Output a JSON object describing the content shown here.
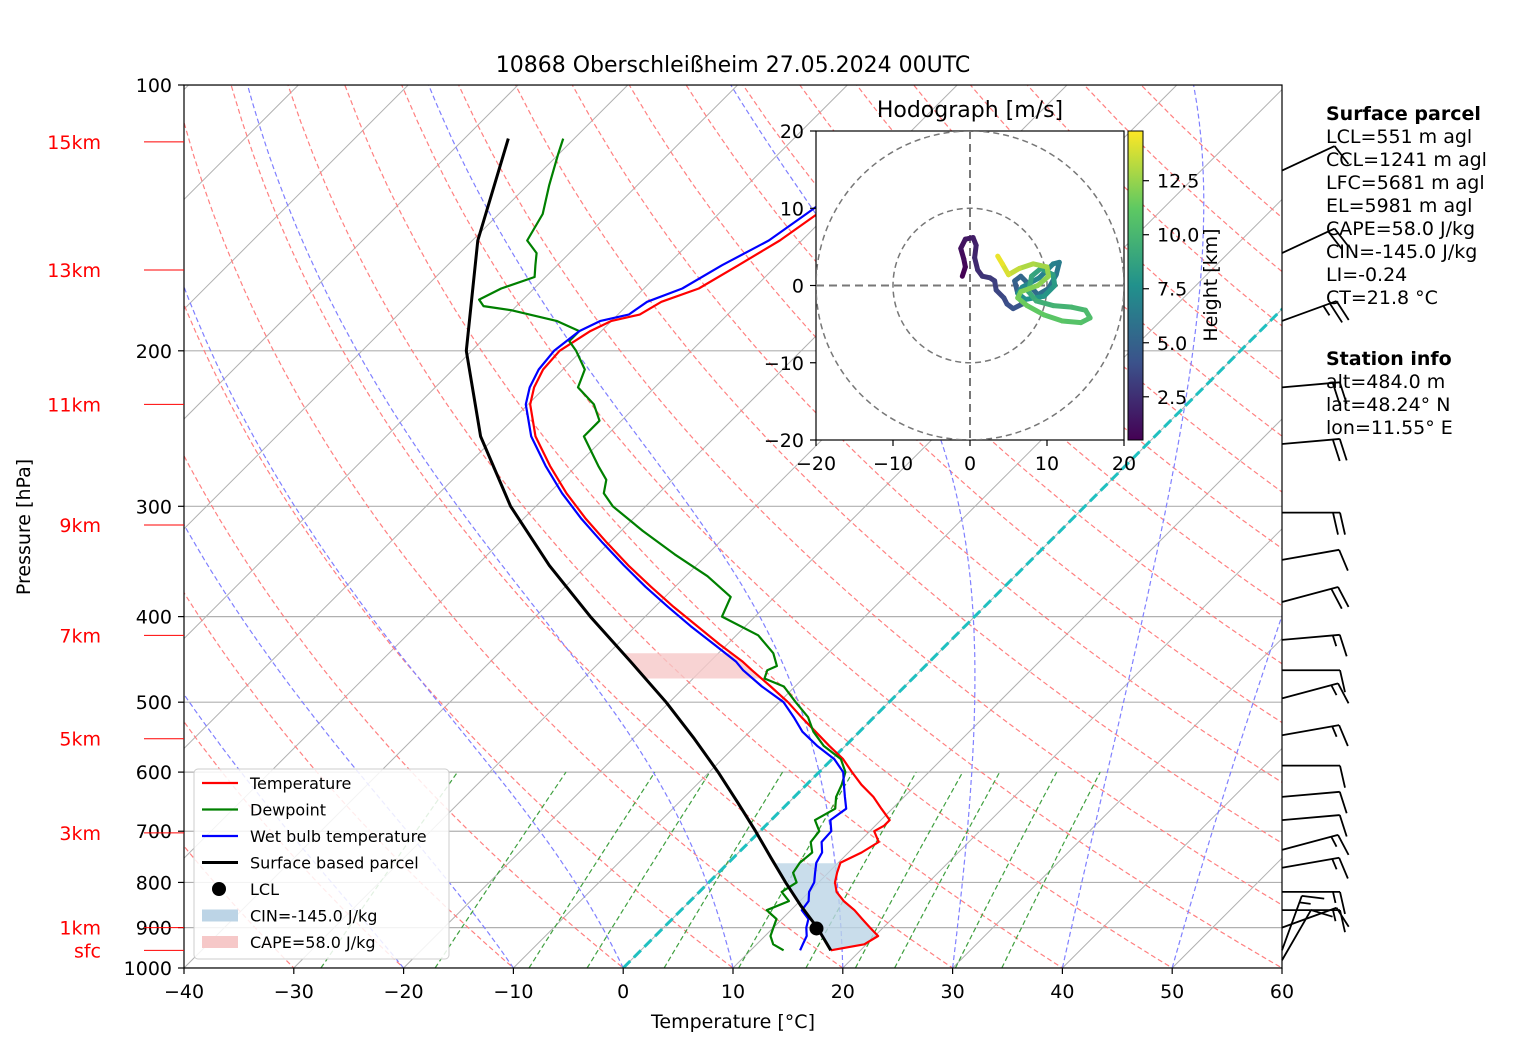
{
  "title": "10868 Oberschleißheim 27.05.2024 00UTC",
  "surface_parcel": {
    "heading": "Surface parcel",
    "lines": [
      "LCL=551 m agl",
      "CCL=1241 m agl",
      "LFC=5681 m agl",
      "EL=5981 m agl",
      "CAPE=58.0 J/kg",
      "CIN=-145.0 J/kg",
      "LI=-0.24",
      "CT=21.8 °C"
    ]
  },
  "station_info": {
    "heading": "Station info",
    "lines": [
      "alt=484.0 m",
      "lat=48.24° N",
      "lon=11.55° E"
    ]
  },
  "chart_data": [
    {
      "type": "line",
      "subtype": "skew-t log-p",
      "xlabel": "Temperature [°C]",
      "ylabel": "Pressure [hPa]",
      "xlim": [
        -40,
        60
      ],
      "ylim": [
        1000,
        100
      ],
      "y_scale": "log",
      "x_ticks": [
        -40,
        -30,
        -20,
        -10,
        0,
        10,
        20,
        30,
        40,
        50,
        60
      ],
      "x_tick_labels": [
        "−40",
        "−30",
        "−20",
        "−10",
        "0",
        "10",
        "20",
        "30",
        "40",
        "50",
        "60"
      ],
      "y_ticks": [
        1000,
        900,
        800,
        700,
        600,
        500,
        400,
        300,
        200,
        100
      ],
      "grid": true,
      "height_labels": [
        {
          "label": "sfc",
          "p": 955
        },
        {
          "label": "1km",
          "p": 900
        },
        {
          "label": "3km",
          "p": 703
        },
        {
          "label": "5km",
          "p": 550
        },
        {
          "label": "7km",
          "p": 420
        },
        {
          "label": "9km",
          "p": 315
        },
        {
          "label": "11km",
          "p": 230
        },
        {
          "label": "13km",
          "p": 162
        },
        {
          "label": "15km",
          "p": 116
        }
      ],
      "legend_position": "lower-left",
      "legend": [
        "Temperature",
        "Dewpoint",
        "Wet bulb temperature",
        "Surface based parcel",
        "LCL",
        "CIN=-145.0 J/kg",
        "CAPE=58.0 J/kg"
      ],
      "colors": {
        "temperature": "#ff0000",
        "dewpoint": "#008000",
        "wetbulb": "#0000ff",
        "parcel": "#000000",
        "dry_adiabat": "#ff8080",
        "moist_adiabat": "#8080ff",
        "mixing_ratio": "#40a040",
        "isotherm": "#b0b0b0",
        "zero_isotherm": "#20c0c0",
        "cin_fill": "#bcd4e6",
        "cape_fill": "#f6c8c8"
      },
      "series": [
        {
          "name": "Temperature",
          "p": [
            955,
            940,
            920,
            900,
            880,
            860,
            840,
            820,
            800,
            780,
            760,
            740,
            720,
            700,
            690,
            680,
            660,
            640,
            620,
            600,
            580,
            560,
            540,
            520,
            500,
            480,
            460,
            450,
            430,
            410,
            390,
            370,
            350,
            330,
            310,
            290,
            270,
            250,
            230,
            220,
            210,
            200,
            190,
            185,
            182,
            176,
            170,
            160,
            150,
            140,
            130,
            120,
            115
          ],
          "t": [
            17.3,
            19.8,
            20.3,
            18.8,
            17.3,
            15.8,
            14.0,
            12.5,
            11.5,
            10.8,
            10.2,
            11.2,
            11.8,
            10.4,
            10.8,
            10.8,
            9.0,
            7.2,
            5.0,
            3.0,
            1.0,
            -1.5,
            -4.0,
            -6.6,
            -9.2,
            -12.2,
            -15.4,
            -17.0,
            -20.7,
            -24.4,
            -28.3,
            -32.2,
            -36.2,
            -40.2,
            -44.3,
            -48.4,
            -52.4,
            -56.4,
            -59.8,
            -61.0,
            -61.8,
            -62.0,
            -61.0,
            -60.0,
            -58.0,
            -57.2,
            -55.0,
            -53.5,
            -52.0,
            -51.0,
            -50.0,
            -49.5,
            -49.3
          ]
        },
        {
          "name": "Dewpoint",
          "p": [
            955,
            940,
            920,
            900,
            880,
            860,
            840,
            820,
            800,
            780,
            760,
            740,
            720,
            700,
            680,
            660,
            640,
            620,
            600,
            580,
            560,
            540,
            520,
            500,
            480,
            470,
            460,
            455,
            440,
            420,
            400,
            380,
            360,
            340,
            320,
            300,
            290,
            280,
            270,
            250,
            240,
            230,
            220,
            210,
            200,
            195,
            190,
            185,
            180,
            178,
            175,
            170,
            165,
            160,
            155,
            150,
            140,
            130,
            120,
            115
          ],
          "t": [
            13.0,
            11.5,
            10.5,
            10.0,
            9.5,
            7.8,
            9.0,
            7.5,
            8.0,
            6.8,
            6.5,
            6.7,
            5.6,
            5.4,
            4.0,
            4.8,
            3.8,
            3.2,
            2.4,
            0.8,
            -2.0,
            -4.2,
            -6.0,
            -8.5,
            -11.0,
            -13.5,
            -14.0,
            -13.5,
            -15.0,
            -18.0,
            -23.0,
            -24.0,
            -28.0,
            -33.0,
            -38.0,
            -43.0,
            -45.0,
            -46.0,
            -48.0,
            -52.0,
            -52.0,
            -54.0,
            -57.0,
            -58.0,
            -60.5,
            -62.0,
            -62.0,
            -65.0,
            -70.0,
            -73.0,
            -74.0,
            -73.0,
            -71.0,
            -72.0,
            -73.0,
            -75.0,
            -76.0,
            -78.0,
            -80.0,
            -81.0
          ]
        },
        {
          "name": "Wet bulb temperature",
          "p": [
            955,
            940,
            920,
            900,
            880,
            860,
            840,
            820,
            800,
            780,
            760,
            740,
            720,
            700,
            680,
            660,
            640,
            620,
            600,
            580,
            560,
            540,
            520,
            500,
            480,
            460,
            450,
            430,
            410,
            390,
            370,
            350,
            330,
            310,
            290,
            270,
            250,
            230,
            220,
            210,
            200,
            190,
            185,
            182,
            176,
            170,
            160,
            150,
            140,
            130,
            120,
            115
          ],
          "t": [
            14.5,
            14.2,
            13.8,
            13.0,
            12.4,
            11.0,
            10.8,
            10.0,
            9.6,
            8.8,
            8.0,
            7.6,
            6.6,
            6.5,
            5.4,
            5.8,
            4.6,
            3.4,
            2.2,
            0.2,
            -2.6,
            -5.2,
            -7.3,
            -9.6,
            -13.0,
            -16.2,
            -17.6,
            -21.2,
            -25.0,
            -28.8,
            -32.7,
            -36.6,
            -40.6,
            -44.7,
            -48.8,
            -52.8,
            -56.8,
            -60.2,
            -61.4,
            -62.2,
            -62.5,
            -62.0,
            -61.0,
            -59.0,
            -58.5,
            -56.5,
            -55.0,
            -53.0,
            -52.0,
            -51.0,
            -50.6,
            -50.4
          ]
        },
        {
          "name": "Surface based parcel",
          "p": [
            955,
            900,
            850,
            800,
            750,
            700,
            650,
            600,
            550,
            500,
            450,
            400,
            350,
            300,
            250,
            200,
            150,
            115
          ],
          "t": [
            17.3,
            14.0,
            10.5,
            7.0,
            3.4,
            -0.4,
            -4.6,
            -9.2,
            -14.4,
            -20.3,
            -27.2,
            -35.0,
            -43.4,
            -52.3,
            -61.4,
            -70.5,
            -79.5,
            -86.0
          ]
        }
      ],
      "lcl": {
        "p": 902,
        "t": 14.0
      },
      "cin": "-145.0 J/kg",
      "cape": "58.0 J/kg",
      "wind_barbs": [
        {
          "p": 980,
          "dir": 210,
          "speed_kt": 10
        },
        {
          "p": 955,
          "dir": 200,
          "speed_kt": 15
        },
        {
          "p": 900,
          "dir": 250,
          "speed_kt": 10
        },
        {
          "p": 860,
          "dir": 270,
          "speed_kt": 15
        },
        {
          "p": 820,
          "dir": 270,
          "speed_kt": 15
        },
        {
          "p": 770,
          "dir": 260,
          "speed_kt": 15
        },
        {
          "p": 735,
          "dir": 255,
          "speed_kt": 15
        },
        {
          "p": 680,
          "dir": 265,
          "speed_kt": 10
        },
        {
          "p": 640,
          "dir": 265,
          "speed_kt": 10
        },
        {
          "p": 590,
          "dir": 270,
          "speed_kt": 10
        },
        {
          "p": 545,
          "dir": 260,
          "speed_kt": 15
        },
        {
          "p": 495,
          "dir": 255,
          "speed_kt": 15
        },
        {
          "p": 460,
          "dir": 270,
          "speed_kt": 10
        },
        {
          "p": 425,
          "dir": 265,
          "speed_kt": 15
        },
        {
          "p": 385,
          "dir": 255,
          "speed_kt": 20
        },
        {
          "p": 345,
          "dir": 260,
          "speed_kt": 10
        },
        {
          "p": 305,
          "dir": 270,
          "speed_kt": 20
        },
        {
          "p": 255,
          "dir": 265,
          "speed_kt": 20
        },
        {
          "p": 220,
          "dir": 265,
          "speed_kt": 20
        },
        {
          "p": 185,
          "dir": 250,
          "speed_kt": 25
        },
        {
          "p": 155,
          "dir": 245,
          "speed_kt": 20
        },
        {
          "p": 125,
          "dir": 245,
          "speed_kt": 10
        }
      ]
    },
    {
      "type": "line",
      "subtype": "hodograph",
      "title": "Hodograph [m/s]",
      "xlim": [
        -20,
        20
      ],
      "ylim": [
        -20,
        20
      ],
      "ticks": [
        -20,
        -10,
        0,
        10,
        20
      ],
      "tick_labels": [
        "−20",
        "−10",
        "0",
        "10",
        "20"
      ],
      "rings": [
        10,
        20
      ],
      "colorbar_label": "Height [km]",
      "colorbar_ticks": [
        "2.5",
        "5.0",
        "7.5",
        "10.0",
        "12.5"
      ],
      "colorbar_tick_values": [
        2.5,
        5.0,
        7.5,
        10.0,
        12.5
      ],
      "colorbar_range": [
        0.5,
        14.8
      ],
      "series": [
        {
          "name": "wind",
          "u": [
            -1.0,
            -0.6,
            -0.8,
            -1.2,
            -0.6,
            0.4,
            0.8,
            0.6,
            1.0,
            1.6,
            2.6,
            3.2,
            3.4,
            4.4,
            4.8,
            5.6,
            6.8,
            6.2,
            5.8,
            6.6,
            7.6,
            8.8,
            10.2,
            11.2,
            11.6,
            10.8,
            9.0,
            6.8,
            6.2,
            7.2,
            9.6,
            11.0,
            10.8,
            9.2,
            8.0,
            7.6,
            8.6,
            10.8,
            13.2,
            15.0,
            15.6,
            14.4,
            12.0,
            9.6,
            7.4,
            6.2,
            6.6,
            8.8,
            10.2,
            10.0,
            8.2,
            6.4,
            5.0,
            4.2,
            3.6
          ],
          "v": [
            1.2,
            2.4,
            3.4,
            4.8,
            6.0,
            6.2,
            5.2,
            3.6,
            2.0,
            1.2,
            1.0,
            0.6,
            -0.6,
            -1.6,
            -2.4,
            -3.0,
            -2.4,
            -1.0,
            0.6,
            1.2,
            0.2,
            -1.2,
            -0.4,
            1.4,
            3.0,
            2.8,
            1.0,
            -0.2,
            -1.0,
            -1.8,
            -1.4,
            0.0,
            1.4,
            2.2,
            1.2,
            -0.8,
            -2.0,
            -2.6,
            -2.8,
            -3.2,
            -4.2,
            -4.8,
            -4.6,
            -3.8,
            -2.6,
            -1.6,
            -0.8,
            0.0,
            1.2,
            2.4,
            2.8,
            2.2,
            1.4,
            2.8,
            3.8
          ],
          "z_km": [
            0.5,
            0.75,
            1.0,
            1.25,
            1.5,
            1.75,
            2.0,
            2.25,
            2.5,
            2.75,
            3.0,
            3.25,
            3.5,
            3.75,
            4.0,
            4.25,
            4.5,
            4.75,
            5.0,
            5.25,
            5.5,
            5.75,
            6.0,
            6.25,
            6.5,
            6.75,
            7.0,
            7.25,
            7.5,
            7.75,
            8.0,
            8.25,
            8.5,
            8.75,
            9.0,
            9.25,
            9.5,
            9.75,
            10.0,
            10.25,
            10.5,
            10.75,
            11.0,
            11.25,
            11.5,
            11.75,
            12.0,
            12.25,
            12.5,
            12.75,
            13.0,
            13.5,
            14.0,
            14.4,
            14.8
          ]
        }
      ]
    }
  ]
}
